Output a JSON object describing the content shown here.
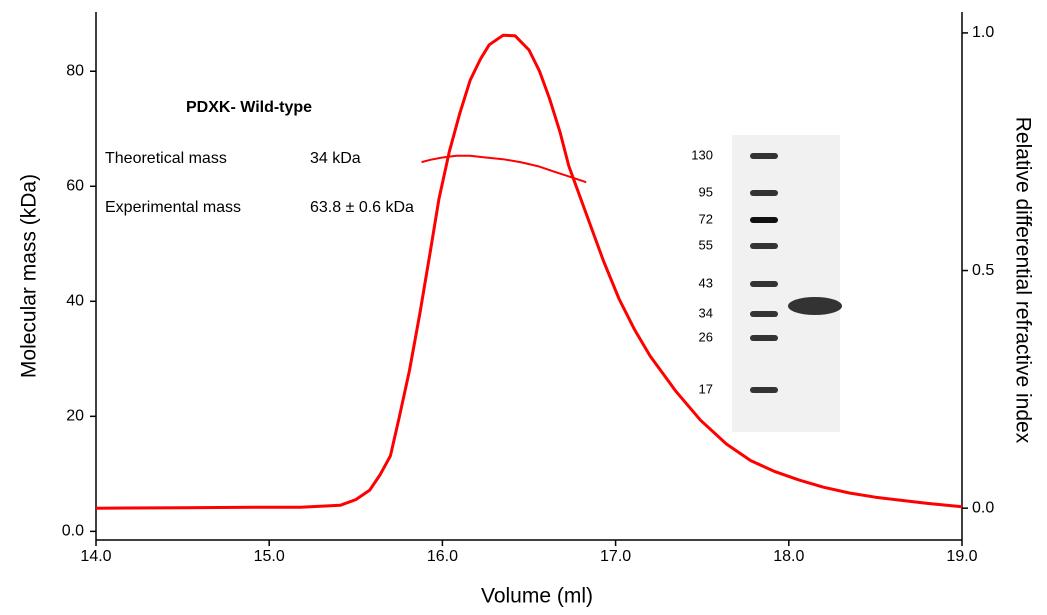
{
  "chart_data": {
    "type": "line",
    "xlabel": "Volume (ml)",
    "ylabel": "Molecular mass (kDa)",
    "y2label": "Relative differential refractive index",
    "xlim": [
      14.0,
      19.0
    ],
    "xticks": [
      {
        "value": 14,
        "label": "14.0"
      },
      {
        "value": 15,
        "label": "15.0"
      },
      {
        "value": 16,
        "label": "16.0"
      },
      {
        "value": 17,
        "label": "17.0"
      },
      {
        "value": 18,
        "label": "18.0"
      },
      {
        "value": 19,
        "label": "19.0"
      }
    ],
    "ylim": [
      -1.5,
      90.3
    ],
    "yticks": [
      {
        "value": 0,
        "label": "0.0"
      },
      20,
      40,
      60,
      80
    ],
    "y2lim": [
      -0.067,
      1.044
    ],
    "y2ticks": [
      {
        "value": 0,
        "label": "0.0"
      },
      {
        "value": 0.5,
        "label": "0.5"
      },
      {
        "value": 1,
        "label": "1.0"
      }
    ],
    "series": [
      {
        "color": "#ff0000",
        "axis": "y2",
        "x": [
          14.0,
          14.5,
          15.0,
          15.18,
          15.41,
          15.5,
          15.58,
          15.64,
          15.7,
          15.75,
          15.81,
          15.87,
          15.93,
          15.98,
          16.04,
          16.1,
          16.16,
          16.22,
          16.27,
          16.35,
          16.42,
          16.5,
          16.56,
          16.62,
          16.68,
          16.73,
          16.79,
          16.85,
          16.93,
          17.02,
          17.11,
          17.2,
          17.35,
          17.49,
          17.64,
          17.78,
          17.92,
          18.06,
          18.2,
          18.35,
          18.5,
          18.64,
          18.8,
          19.0
        ],
        "values": [
          0.0,
          0.001,
          0.002,
          0.002,
          0.006,
          0.018,
          0.038,
          0.07,
          0.11,
          0.19,
          0.29,
          0.41,
          0.54,
          0.65,
          0.75,
          0.83,
          0.9,
          0.945,
          0.975,
          0.995,
          0.994,
          0.964,
          0.92,
          0.86,
          0.79,
          0.72,
          0.66,
          0.6,
          0.52,
          0.44,
          0.375,
          0.32,
          0.245,
          0.185,
          0.135,
          0.1,
          0.077,
          0.059,
          0.044,
          0.032,
          0.023,
          0.017,
          0.01,
          0.003
        ]
      },
      {
        "color": "#ff0000",
        "axis": "y",
        "x": [
          15.88,
          15.93,
          16.0,
          16.08,
          16.16,
          16.25,
          16.35,
          16.45,
          16.55,
          16.65,
          16.75,
          16.83
        ],
        "values": [
          64.2,
          64.6,
          65.0,
          65.3,
          65.3,
          65.0,
          64.7,
          64.2,
          63.5,
          62.5,
          61.5,
          60.7
        ]
      }
    ],
    "annotations": {
      "title": "PDXK- Wild-type",
      "theoretical_label": "Theoretical mass",
      "theoretical_value": "34 kDa",
      "experimental_label": "Experimental mass",
      "experimental_value": "63.8 ± 0.6 kDa"
    },
    "gel_markers": [
      130,
      95,
      72,
      55,
      43,
      34,
      26,
      17
    ]
  }
}
